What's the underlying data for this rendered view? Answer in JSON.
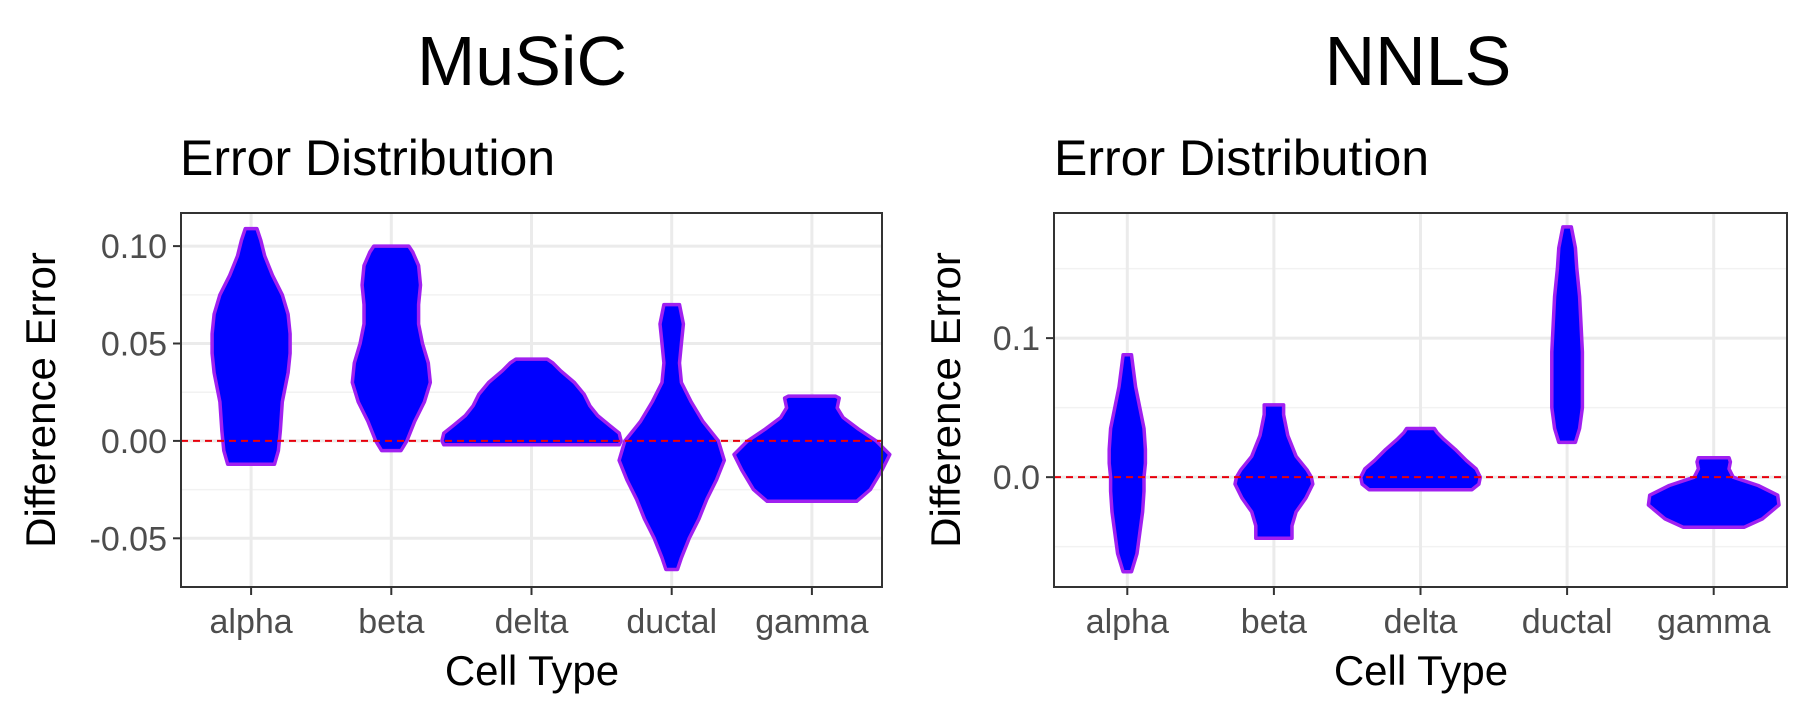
{
  "figure": {
    "panel_titles": [
      "MuSiC",
      "NNLS"
    ]
  },
  "chart_data": [
    {
      "type": "violin",
      "title": "Error Distribution",
      "xlabel": "Cell Type",
      "ylabel": "Difference Error",
      "categories": [
        "alpha",
        "beta",
        "delta",
        "ductal",
        "gamma"
      ],
      "ylim": [
        -0.075,
        0.117
      ],
      "yticks": [
        -0.05,
        0.0,
        0.05,
        0.1
      ],
      "ytick_labels": [
        "-0.05",
        "0.00",
        "0.05",
        "0.10"
      ],
      "reference_line": {
        "y": 0,
        "style": "dashed",
        "color": "#e8000b"
      },
      "grid": true,
      "fill_color": "#0000ff",
      "outline_color": "#a020f0",
      "violins": [
        {
          "category": "alpha",
          "profile": [
            [
              -0.012,
              0.012
            ],
            [
              -0.005,
              0.014
            ],
            [
              0.005,
              0.015
            ],
            [
              0.02,
              0.016
            ],
            [
              0.035,
              0.019
            ],
            [
              0.045,
              0.02
            ],
            [
              0.055,
              0.02
            ],
            [
              0.065,
              0.019
            ],
            [
              0.075,
              0.016
            ],
            [
              0.085,
              0.011
            ],
            [
              0.095,
              0.007
            ],
            [
              0.103,
              0.005
            ],
            [
              0.109,
              0.003
            ]
          ]
        },
        {
          "category": "beta",
          "profile": [
            [
              -0.005,
              0.005
            ],
            [
              0.0,
              0.008
            ],
            [
              0.01,
              0.012
            ],
            [
              0.02,
              0.017
            ],
            [
              0.03,
              0.02
            ],
            [
              0.04,
              0.019
            ],
            [
              0.05,
              0.016
            ],
            [
              0.06,
              0.014
            ],
            [
              0.07,
              0.014
            ],
            [
              0.08,
              0.015
            ],
            [
              0.09,
              0.014
            ],
            [
              0.097,
              0.011
            ],
            [
              0.1,
              0.009
            ]
          ]
        },
        {
          "category": "delta",
          "profile": [
            [
              -0.002,
              0.045
            ],
            [
              0.0,
              0.046
            ],
            [
              0.004,
              0.045
            ],
            [
              0.008,
              0.04
            ],
            [
              0.013,
              0.034
            ],
            [
              0.018,
              0.03
            ],
            [
              0.024,
              0.027
            ],
            [
              0.03,
              0.022
            ],
            [
              0.036,
              0.015
            ],
            [
              0.04,
              0.011
            ],
            [
              0.042,
              0.008
            ]
          ]
        },
        {
          "category": "ductal",
          "profile": [
            [
              -0.066,
              0.003
            ],
            [
              -0.06,
              0.005
            ],
            [
              -0.05,
              0.009
            ],
            [
              -0.04,
              0.014
            ],
            [
              -0.03,
              0.018
            ],
            [
              -0.02,
              0.023
            ],
            [
              -0.01,
              0.027
            ],
            [
              0.0,
              0.024
            ],
            [
              0.01,
              0.016
            ],
            [
              0.02,
              0.01
            ],
            [
              0.03,
              0.005
            ],
            [
              0.04,
              0.004
            ],
            [
              0.05,
              0.005
            ],
            [
              0.06,
              0.006
            ],
            [
              0.07,
              0.004
            ]
          ]
        },
        {
          "category": "gamma",
          "profile": [
            [
              -0.031,
              0.023
            ],
            [
              -0.025,
              0.03
            ],
            [
              -0.015,
              0.036
            ],
            [
              -0.007,
              0.04
            ],
            [
              0.0,
              0.033
            ],
            [
              0.006,
              0.024
            ],
            [
              0.012,
              0.016
            ],
            [
              0.017,
              0.013
            ],
            [
              0.022,
              0.014
            ],
            [
              0.023,
              0.012
            ]
          ]
        }
      ]
    },
    {
      "type": "violin",
      "title": "Error Distribution",
      "xlabel": "Cell Type",
      "ylabel": "Difference Error",
      "categories": [
        "alpha",
        "beta",
        "delta",
        "ductal",
        "gamma"
      ],
      "ylim": [
        -0.079,
        0.19
      ],
      "yticks": [
        0.0,
        0.1
      ],
      "ytick_labels": [
        "0.0",
        "0.1"
      ],
      "reference_line": {
        "y": 0,
        "style": "dashed",
        "color": "#e8000b"
      },
      "grid": true,
      "fill_color": "#0000ff",
      "outline_color": "#a020f0",
      "violins": [
        {
          "category": "alpha",
          "profile": [
            [
              -0.068,
              0.003
            ],
            [
              -0.055,
              0.007
            ],
            [
              -0.04,
              0.009
            ],
            [
              -0.025,
              0.011
            ],
            [
              -0.01,
              0.012
            ],
            [
              0.0,
              0.012
            ],
            [
              0.01,
              0.013
            ],
            [
              0.02,
              0.013
            ],
            [
              0.035,
              0.012
            ],
            [
              0.05,
              0.009
            ],
            [
              0.065,
              0.006
            ],
            [
              0.08,
              0.004
            ],
            [
              0.088,
              0.003
            ]
          ]
        },
        {
          "category": "beta",
          "profile": [
            [
              -0.044,
              0.013
            ],
            [
              -0.035,
              0.013
            ],
            [
              -0.025,
              0.016
            ],
            [
              -0.015,
              0.023
            ],
            [
              -0.005,
              0.028
            ],
            [
              0.0,
              0.027
            ],
            [
              0.005,
              0.024
            ],
            [
              0.015,
              0.016
            ],
            [
              0.03,
              0.01
            ],
            [
              0.045,
              0.007
            ],
            [
              0.052,
              0.007
            ]
          ]
        },
        {
          "category": "delta",
          "profile": [
            [
              -0.009,
              0.037
            ],
            [
              -0.005,
              0.042
            ],
            [
              0.0,
              0.043
            ],
            [
              0.006,
              0.04
            ],
            [
              0.012,
              0.033
            ],
            [
              0.02,
              0.025
            ],
            [
              0.027,
              0.017
            ],
            [
              0.032,
              0.012
            ],
            [
              0.035,
              0.01
            ]
          ]
        },
        {
          "category": "ductal",
          "profile": [
            [
              0.025,
              0.006
            ],
            [
              0.035,
              0.009
            ],
            [
              0.05,
              0.011
            ],
            [
              0.07,
              0.011
            ],
            [
              0.09,
              0.011
            ],
            [
              0.11,
              0.01
            ],
            [
              0.13,
              0.009
            ],
            [
              0.15,
              0.007
            ],
            [
              0.165,
              0.006
            ],
            [
              0.175,
              0.004
            ],
            [
              0.18,
              0.003
            ]
          ]
        },
        {
          "category": "gamma",
          "profile": [
            [
              -0.036,
              0.022
            ],
            [
              -0.03,
              0.035
            ],
            [
              -0.02,
              0.047
            ],
            [
              -0.013,
              0.046
            ],
            [
              -0.006,
              0.032
            ],
            [
              0.0,
              0.014
            ],
            [
              0.006,
              0.011
            ],
            [
              0.011,
              0.012
            ],
            [
              0.014,
              0.011
            ]
          ]
        }
      ]
    }
  ]
}
